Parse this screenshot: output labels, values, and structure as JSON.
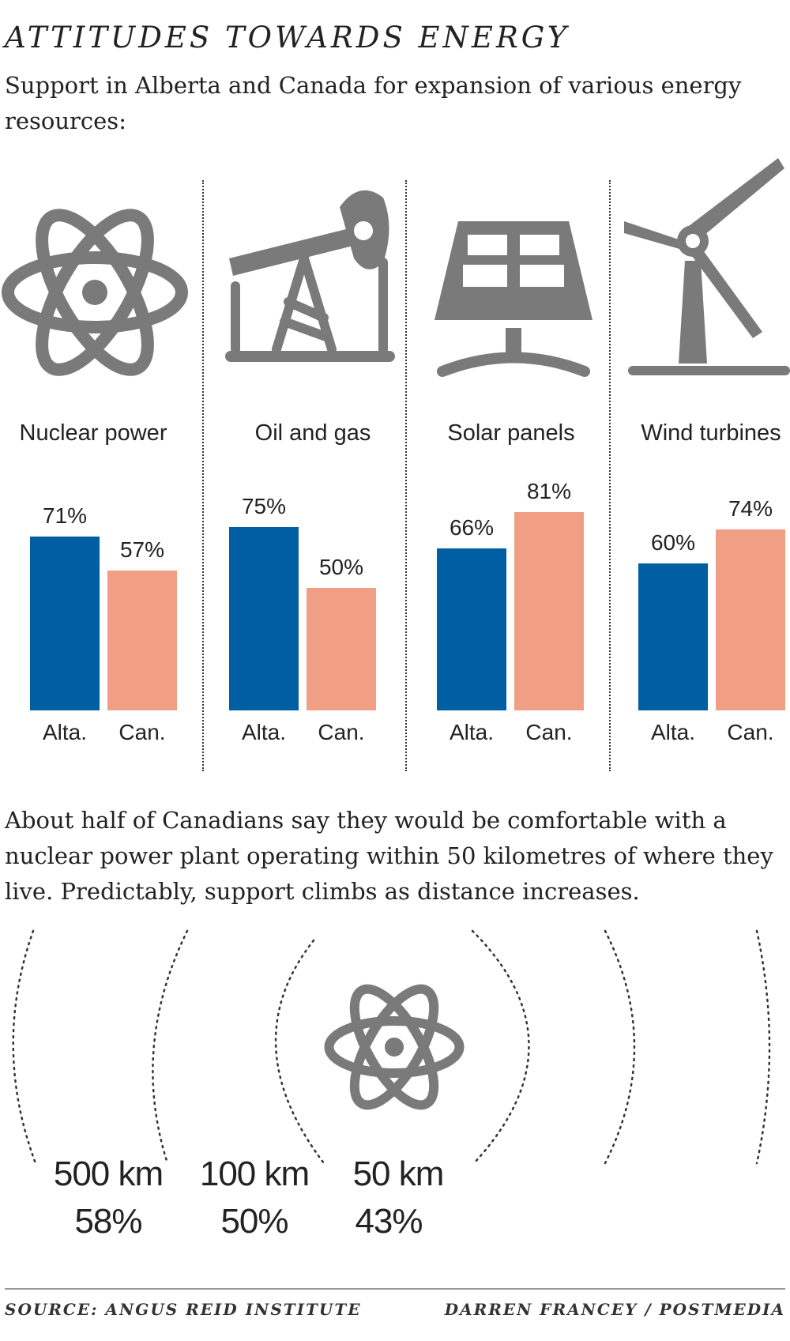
{
  "title": "ATTITUDES TOWARDS ENERGY",
  "subtitle": "Support in Alberta and Canada for expansion of various energy resources:",
  "colors": {
    "alberta": "#005ea2",
    "canada": "#f09f84",
    "icon": "#7a7a7a"
  },
  "chart_data": [
    {
      "type": "bar",
      "categories": [
        "Nuclear power",
        "Oil and gas",
        "Solar panels",
        "Wind turbines"
      ],
      "group_labels": [
        "Alta.",
        "Can."
      ],
      "series": [
        {
          "values": [
            71,
            75,
            66,
            60
          ]
        },
        {
          "values": [
            57,
            50,
            81,
            74
          ]
        }
      ],
      "value_labels": {
        "alberta": [
          "71%",
          "75%",
          "66%",
          "60%"
        ],
        "canada": [
          "57%",
          "50%",
          "81%",
          "74%"
        ]
      },
      "icons": [
        "nuclear-icon",
        "oil-pump-icon",
        "solar-panel-icon",
        "wind-turbine-icon"
      ],
      "ylim": [
        0,
        100
      ],
      "grid": false
    },
    {
      "type": "table",
      "description_text": "About half of Canadians say they would be comfortable with a nuclear power plant operating within 50 kilometres of where they live. Predictably, support climbs as distance increases.",
      "distances": [
        "500 km",
        "100 km",
        "50 km"
      ],
      "values": [
        58,
        50,
        43
      ],
      "value_labels": [
        "58%",
        "50%",
        "43%"
      ]
    }
  ],
  "footer": {
    "source": "SOURCE: ANGUS REID INSTITUTE",
    "credit": "DARREN FRANCEY / POSTMEDIA"
  }
}
